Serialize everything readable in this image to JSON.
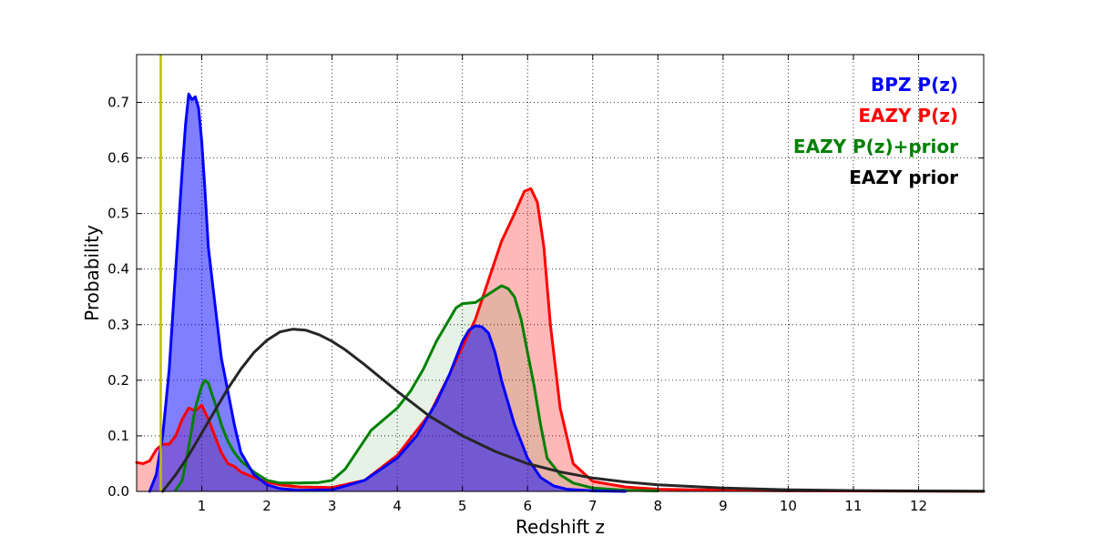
{
  "chart_data": {
    "type": "area",
    "title": "",
    "xlabel": "Redshift z",
    "ylabel": "Probability",
    "xlim": [
      0,
      13
    ],
    "ylim": [
      0,
      0.786
    ],
    "x_ticks": [
      1,
      2,
      3,
      4,
      5,
      6,
      7,
      8,
      9,
      10,
      11,
      12
    ],
    "x_tick_labels": [
      "1",
      "2",
      "3",
      "4",
      "5",
      "6",
      "7",
      "8",
      "9",
      "10",
      "11",
      "12"
    ],
    "y_ticks": [
      0.0,
      0.1,
      0.2,
      0.3,
      0.4,
      0.5,
      0.6,
      0.7
    ],
    "y_tick_labels": [
      "0.0",
      "0.1",
      "0.2",
      "0.3",
      "0.4",
      "0.5",
      "0.6",
      "0.7"
    ],
    "grid": true,
    "legend_position": "top-right",
    "vertical_line": {
      "x": 0.37,
      "color": "#bfbf00"
    },
    "series": [
      {
        "name": "EAZY P(z)",
        "color": "#ff0000",
        "fill": "rgba(255,0,0,0.28)",
        "x": [
          0,
          0.1,
          0.2,
          0.3,
          0.4,
          0.5,
          0.6,
          0.7,
          0.8,
          0.9,
          1.0,
          1.1,
          1.2,
          1.3,
          1.4,
          1.5,
          1.6,
          1.8,
          2.0,
          2.2,
          2.5,
          3.0,
          3.5,
          4.0,
          4.5,
          4.8,
          5.0,
          5.2,
          5.4,
          5.6,
          5.8,
          5.95,
          6.05,
          6.15,
          6.25,
          6.35,
          6.5,
          6.7,
          7.0,
          7.5,
          8.0,
          9.0,
          10,
          11,
          12,
          13
        ],
        "y": [
          0.052,
          0.05,
          0.055,
          0.075,
          0.085,
          0.085,
          0.1,
          0.13,
          0.15,
          0.145,
          0.155,
          0.13,
          0.1,
          0.07,
          0.05,
          0.045,
          0.035,
          0.025,
          0.017,
          0.012,
          0.008,
          0.007,
          0.02,
          0.065,
          0.14,
          0.21,
          0.26,
          0.31,
          0.38,
          0.45,
          0.5,
          0.54,
          0.545,
          0.52,
          0.44,
          0.3,
          0.15,
          0.05,
          0.018,
          0.008,
          0.004,
          0.002,
          0.001,
          0.0008,
          0.0005,
          0.0
        ]
      },
      {
        "name": "EAZY P(z)+prior",
        "color": "#008000",
        "fill": "rgba(0,128,0,0.10)",
        "x": [
          0.6,
          0.7,
          0.8,
          0.9,
          1.0,
          1.05,
          1.1,
          1.2,
          1.3,
          1.4,
          1.5,
          1.6,
          1.8,
          2.0,
          2.2,
          2.5,
          2.8,
          3.0,
          3.2,
          3.4,
          3.6,
          3.8,
          4.0,
          4.2,
          4.4,
          4.6,
          4.8,
          4.9,
          5.0,
          5.2,
          5.4,
          5.6,
          5.7,
          5.8,
          5.9,
          6.0,
          6.1,
          6.2,
          6.3,
          6.5,
          6.7,
          7.0,
          7.5,
          8.0
        ],
        "y": [
          0.002,
          0.02,
          0.08,
          0.15,
          0.19,
          0.2,
          0.195,
          0.16,
          0.12,
          0.09,
          0.07,
          0.055,
          0.035,
          0.02,
          0.015,
          0.015,
          0.016,
          0.02,
          0.04,
          0.075,
          0.11,
          0.13,
          0.15,
          0.18,
          0.22,
          0.27,
          0.31,
          0.33,
          0.338,
          0.34,
          0.355,
          0.37,
          0.365,
          0.35,
          0.31,
          0.25,
          0.19,
          0.12,
          0.06,
          0.03,
          0.015,
          0.006,
          0.002,
          0.001
        ]
      },
      {
        "name": "BPZ P(z)",
        "color": "#0000ff",
        "fill": "rgba(0,0,255,0.5)",
        "x": [
          0.2,
          0.3,
          0.4,
          0.5,
          0.6,
          0.7,
          0.75,
          0.8,
          0.85,
          0.9,
          0.95,
          1.0,
          1.05,
          1.1,
          1.2,
          1.3,
          1.4,
          1.5,
          1.6,
          1.7,
          1.8,
          2.0,
          2.2,
          2.5,
          3.0,
          3.5,
          4.0,
          4.3,
          4.6,
          4.8,
          5.0,
          5.1,
          5.2,
          5.3,
          5.4,
          5.5,
          5.6,
          5.8,
          6.0,
          6.2,
          6.4,
          6.6,
          7.0,
          7.5
        ],
        "y": [
          0.0,
          0.03,
          0.1,
          0.22,
          0.4,
          0.58,
          0.66,
          0.715,
          0.705,
          0.71,
          0.69,
          0.63,
          0.54,
          0.44,
          0.34,
          0.24,
          0.18,
          0.12,
          0.07,
          0.05,
          0.03,
          0.012,
          0.005,
          0.002,
          0.003,
          0.02,
          0.06,
          0.1,
          0.16,
          0.21,
          0.27,
          0.29,
          0.298,
          0.296,
          0.285,
          0.25,
          0.2,
          0.12,
          0.06,
          0.025,
          0.01,
          0.004,
          0.001,
          0.0
        ]
      },
      {
        "name": "EAZY prior",
        "color": "#262626",
        "fill": "none",
        "x": [
          0.4,
          0.6,
          0.8,
          1.0,
          1.2,
          1.4,
          1.6,
          1.8,
          2.0,
          2.2,
          2.4,
          2.6,
          2.8,
          3.0,
          3.2,
          3.5,
          4.0,
          4.5,
          5.0,
          5.5,
          6.0,
          6.5,
          7.0,
          7.5,
          8.0,
          9.0,
          10.0,
          11.0,
          12.0,
          13.0
        ],
        "y": [
          0.0,
          0.03,
          0.065,
          0.105,
          0.145,
          0.185,
          0.22,
          0.25,
          0.272,
          0.287,
          0.292,
          0.29,
          0.282,
          0.27,
          0.255,
          0.228,
          0.18,
          0.135,
          0.1,
          0.072,
          0.05,
          0.035,
          0.024,
          0.017,
          0.012,
          0.006,
          0.003,
          0.0015,
          0.0008,
          0.0004
        ]
      }
    ],
    "legend": [
      {
        "label": "BPZ P(z)",
        "color": "#0000ff"
      },
      {
        "label": "EAZY P(z)",
        "color": "#ff0000"
      },
      {
        "label": "EAZY P(z)+prior",
        "color": "#008000"
      },
      {
        "label": "EAZY prior",
        "color": "#000000"
      }
    ]
  }
}
